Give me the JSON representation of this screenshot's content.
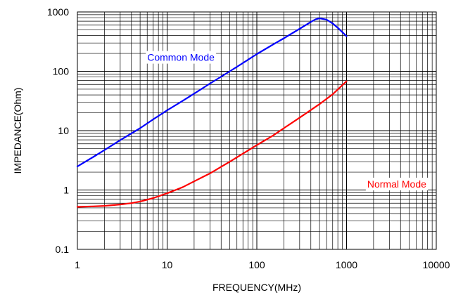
{
  "chart_data": {
    "type": "line",
    "title": "",
    "xlabel": "FREQUENCY(MHz)",
    "ylabel": "IMPEDANCE(Ohm)",
    "x_scale": "log",
    "y_scale": "log",
    "xlim": [
      1,
      10000
    ],
    "ylim": [
      0.1,
      1000
    ],
    "x_ticks": [
      "1",
      "10",
      "100",
      "1000",
      "10000"
    ],
    "y_ticks": [
      "0.1",
      "1",
      "10",
      "100",
      "1000"
    ],
    "grid": true,
    "legend": "none",
    "series": [
      {
        "name": "Common Mode",
        "color": "#0000ff",
        "x": [
          1,
          1.5,
          2,
          3,
          5,
          7,
          10,
          15,
          20,
          30,
          50,
          70,
          100,
          150,
          200,
          300,
          400,
          450,
          500,
          600,
          700,
          800,
          1000
        ],
        "y": [
          2.5,
          3.6,
          4.7,
          6.9,
          11,
          15.5,
          22,
          32,
          42,
          62,
          100,
          138,
          195,
          280,
          360,
          520,
          680,
          750,
          780,
          740,
          640,
          540,
          390
        ]
      },
      {
        "name": "Normal Mode",
        "color": "#ff0000",
        "x": [
          1,
          1.5,
          2,
          3,
          4,
          5,
          7,
          10,
          15,
          20,
          30,
          50,
          70,
          100,
          150,
          200,
          300,
          500,
          700,
          1000
        ],
        "y": [
          0.52,
          0.53,
          0.54,
          0.57,
          0.6,
          0.64,
          0.73,
          0.88,
          1.12,
          1.4,
          1.9,
          3.0,
          4.1,
          5.7,
          8.2,
          11,
          16.5,
          28,
          41,
          68
        ]
      }
    ],
    "annotations": [
      {
        "text": "Common Mode",
        "color": "#0000ff",
        "x": 6,
        "y": 150
      },
      {
        "text": "Normal Mode",
        "color": "#ff0000",
        "x": 1700,
        "y": 1.1
      }
    ]
  }
}
